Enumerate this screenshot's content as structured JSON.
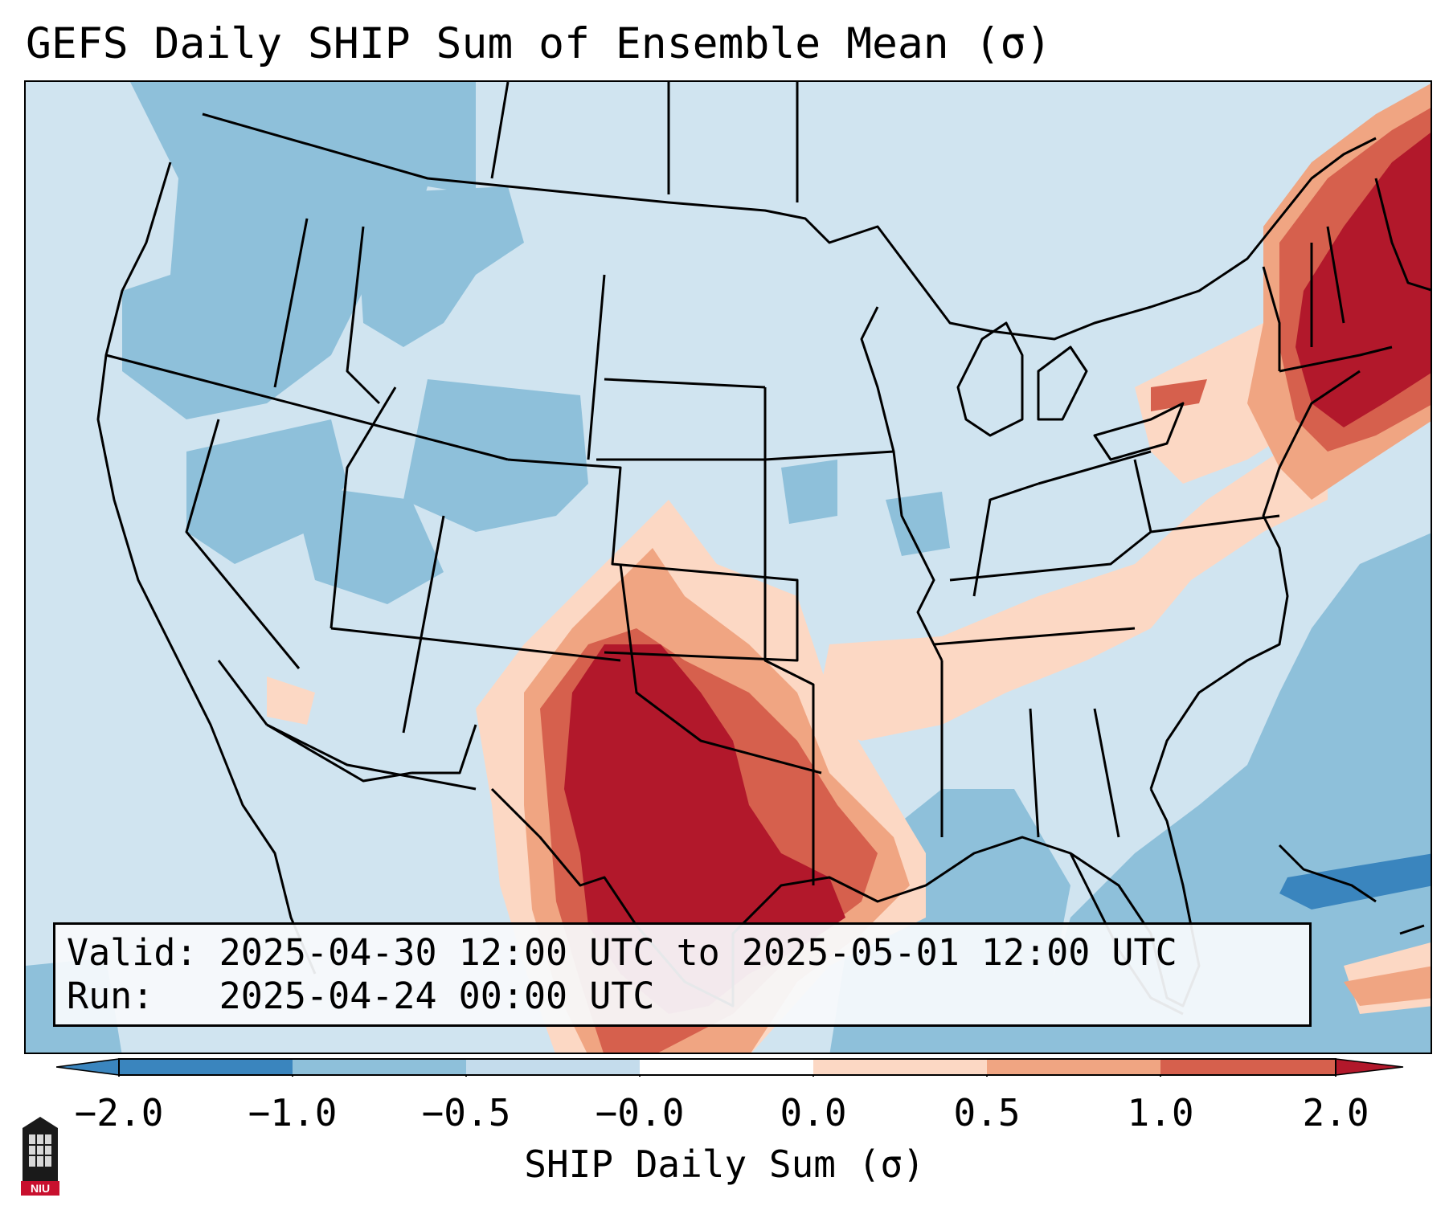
{
  "title": "GEFS Daily SHIP Sum of Ensemble Mean (σ)",
  "info": {
    "valid_line": "Valid: 2025-04-30 12:00 UTC to 2025-05-01 12:00 UTC",
    "run_line": "Run:   2025-04-24 00:00 UTC"
  },
  "colorbar": {
    "label": "SHIP Daily Sum (σ)",
    "ticks": [
      "−2.0",
      "−1.0",
      "−0.5",
      "−0.0",
      "0.0",
      "0.5",
      "1.0",
      "2.0"
    ],
    "colors": {
      "below_min": "#3a85be",
      "n2_n1": "#3a85be",
      "n1_n05": "#8ec0da",
      "n05_0": "#d0e4f0",
      "0_05": "#fcd8c4",
      "05_1": "#f0a582",
      "1_2": "#d6604d",
      "above_max": "#b2182b"
    }
  },
  "map": {
    "projection": "Lambert conformal",
    "region": "Contiguous United States",
    "field": "SHIP daily sum anomaly",
    "highlights": [
      {
        "area": "Texas and southern Plains",
        "level": "above 2.0"
      },
      {
        "area": "New England and Northeast",
        "level": "above 2.0"
      },
      {
        "area": "Pacific Northwest and Rockies",
        "level": "-1.0 to -0.5"
      },
      {
        "area": "Southeast US coast and Gulf",
        "level": "-1.0 to -0.5"
      }
    ]
  },
  "logo": {
    "text": "NIU"
  }
}
